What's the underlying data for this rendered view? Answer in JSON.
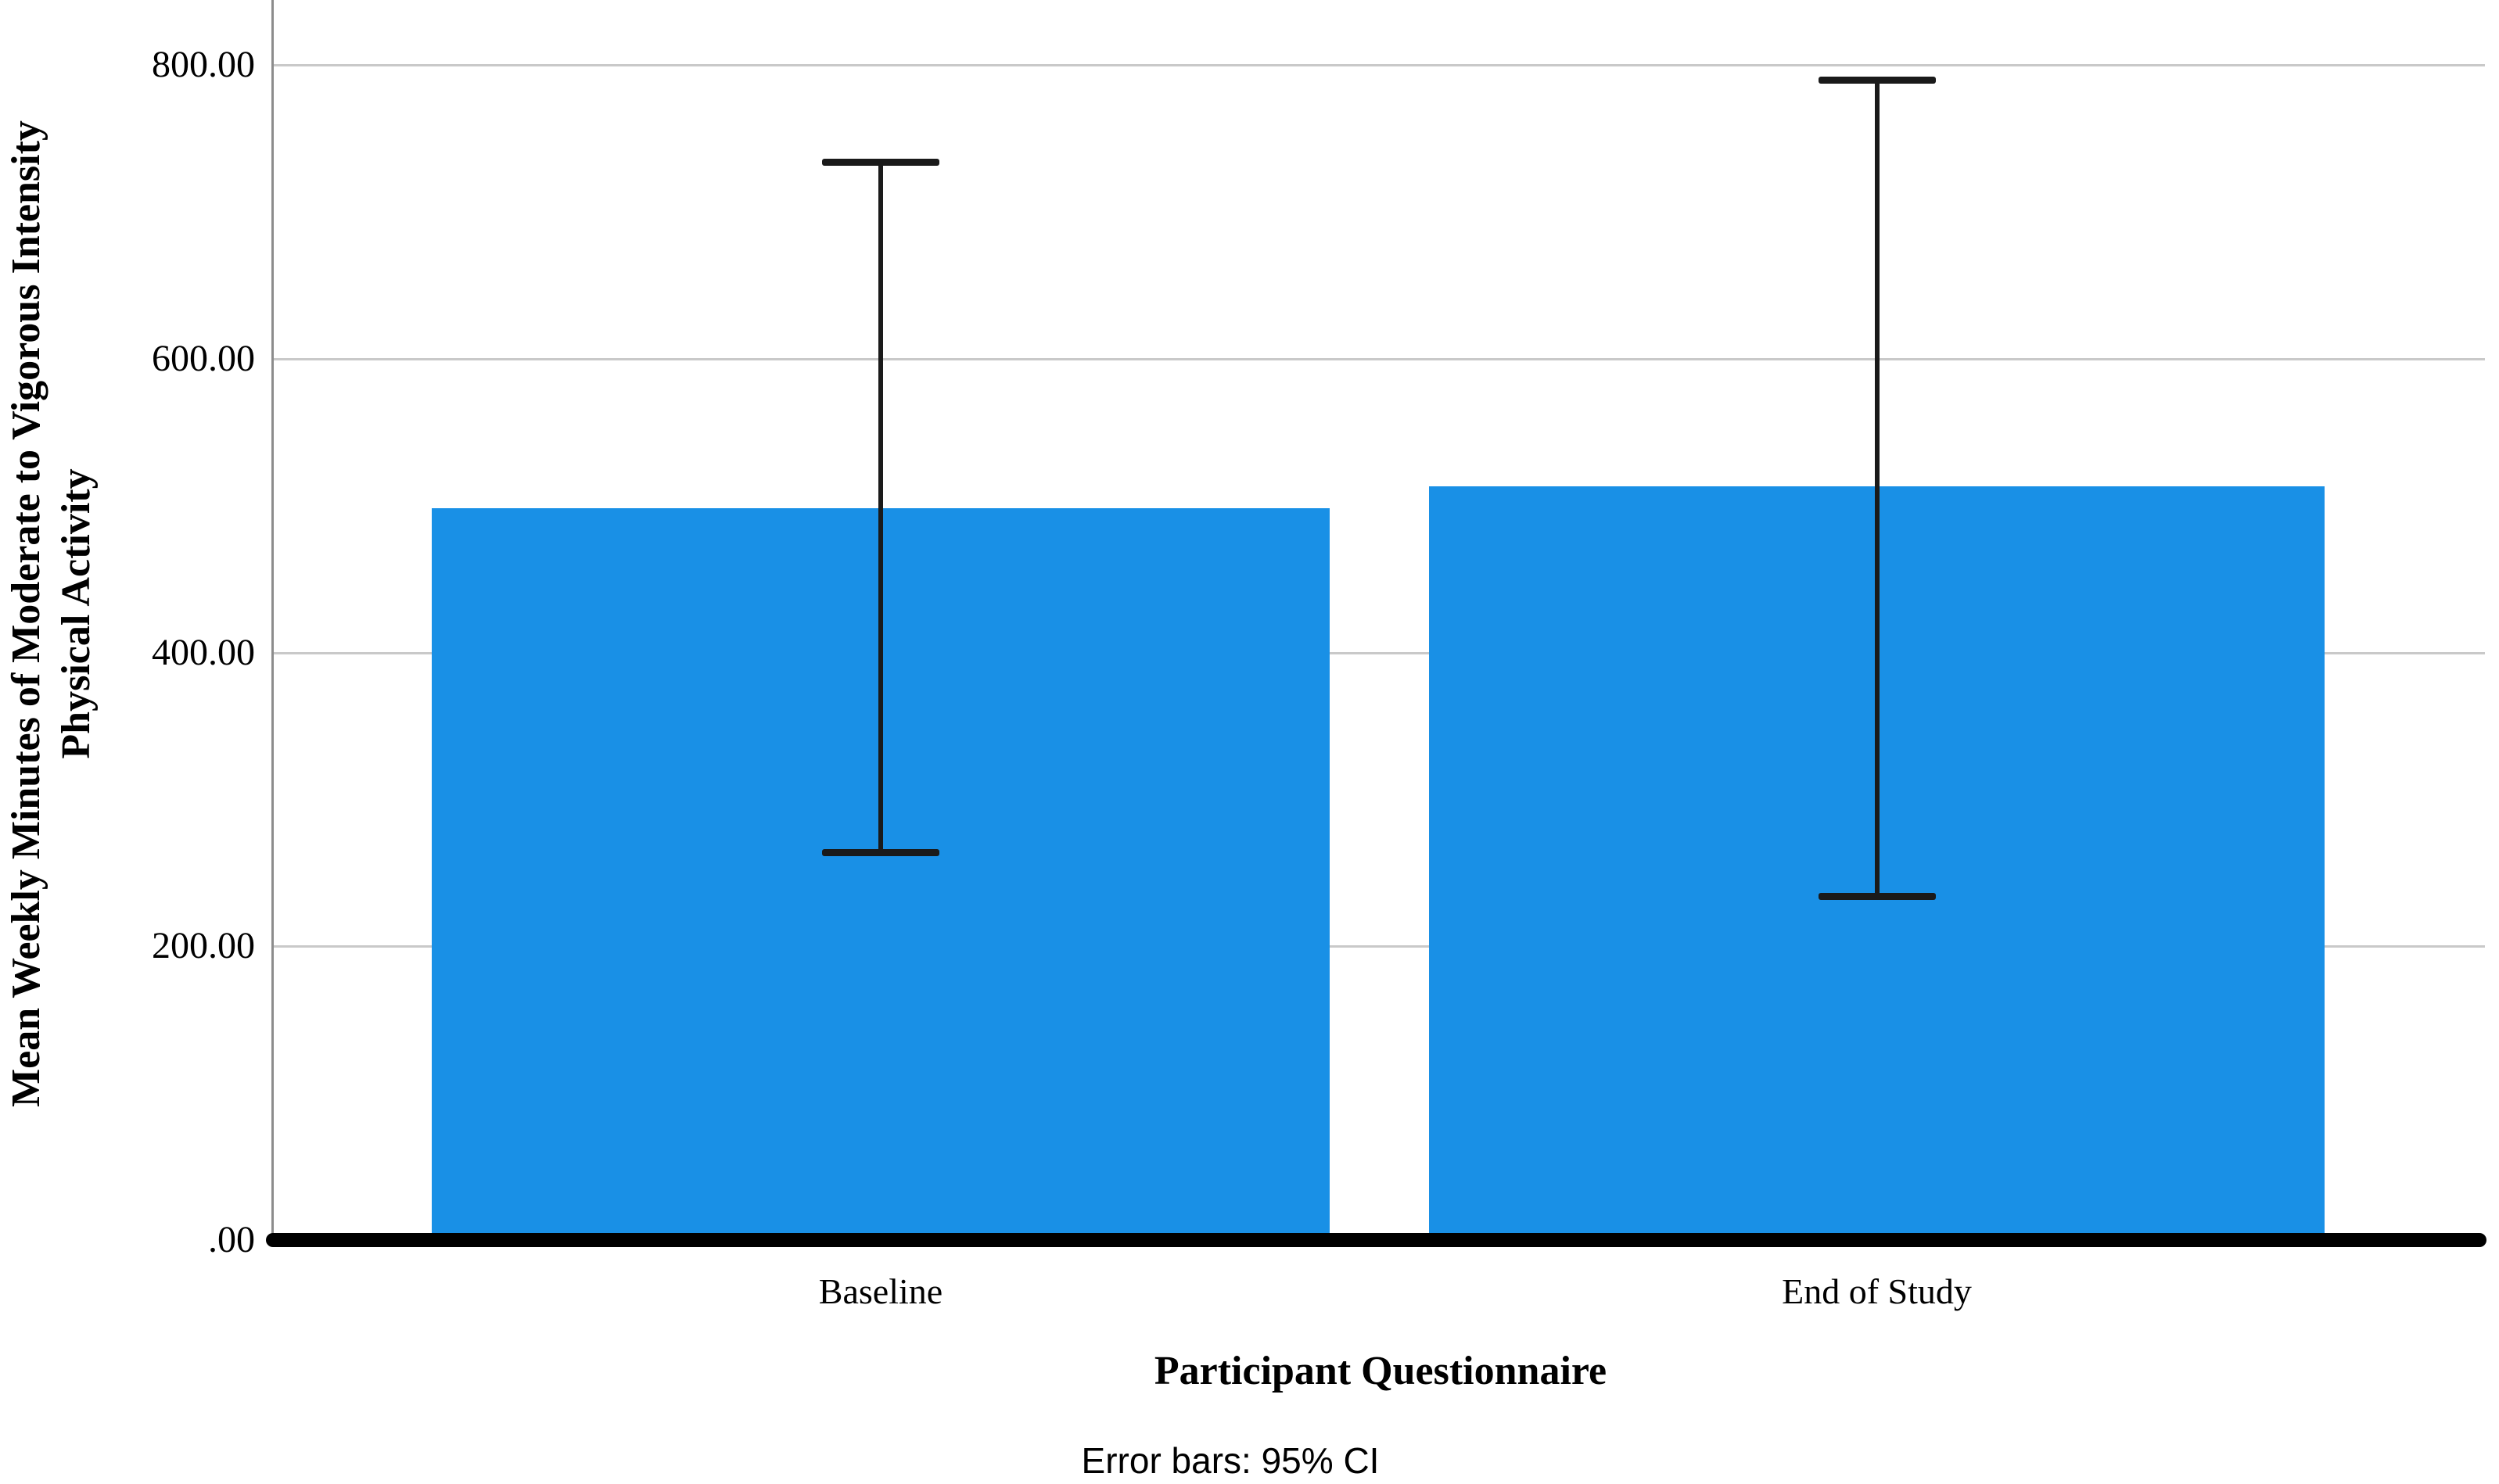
{
  "chart": {
    "footnote": "Error bars: 95% CI",
    "x_axis_title": "Participant Questionnaire",
    "y_axis_title_lines": [
      "Mean Weekly Minutes of Moderate to Vigorous Intensity",
      "Physical Activity"
    ]
  },
  "chart_data": {
    "type": "bar",
    "title": "",
    "categories": [
      "Baseline",
      "End of Study"
    ],
    "values": [
      498,
      513
    ],
    "ci_95_low": [
      264,
      234
    ],
    "ci_95_high": [
      734,
      790
    ],
    "error_bars": "95% CI",
    "xlabel": "Participant Questionnaire",
    "ylabel": "Mean Weekly Minutes of Moderate to Vigorous Intensity Physical Activity",
    "yticks": [
      {
        "label": "800.00",
        "value": 800
      },
      {
        "label": "600.00",
        "value": 600
      },
      {
        "label": "400.00",
        "value": 400
      },
      {
        "label": "200.00",
        "value": 200
      },
      {
        "label": ".00",
        "value": 0
      }
    ],
    "ylim": [
      0,
      845
    ],
    "grid": "horizontal-only",
    "legend": "none",
    "bar_color": "#1990E6"
  }
}
